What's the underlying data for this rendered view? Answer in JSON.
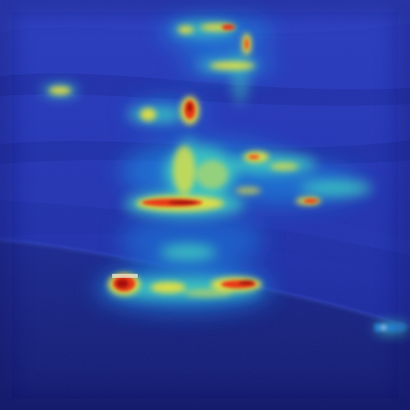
{
  "image": {
    "kind": "attention-heatmap-overlay",
    "subject": "hillside-landscape",
    "colormap": "jet",
    "base_tint": "#1a2ab8",
    "palette": {
      "low": "#1020a8",
      "mid_low": "#1f7fd8",
      "mid": "#3fd0c0",
      "mid_high": "#e8e040",
      "high": "#e83818",
      "peak": "#a80808"
    }
  }
}
